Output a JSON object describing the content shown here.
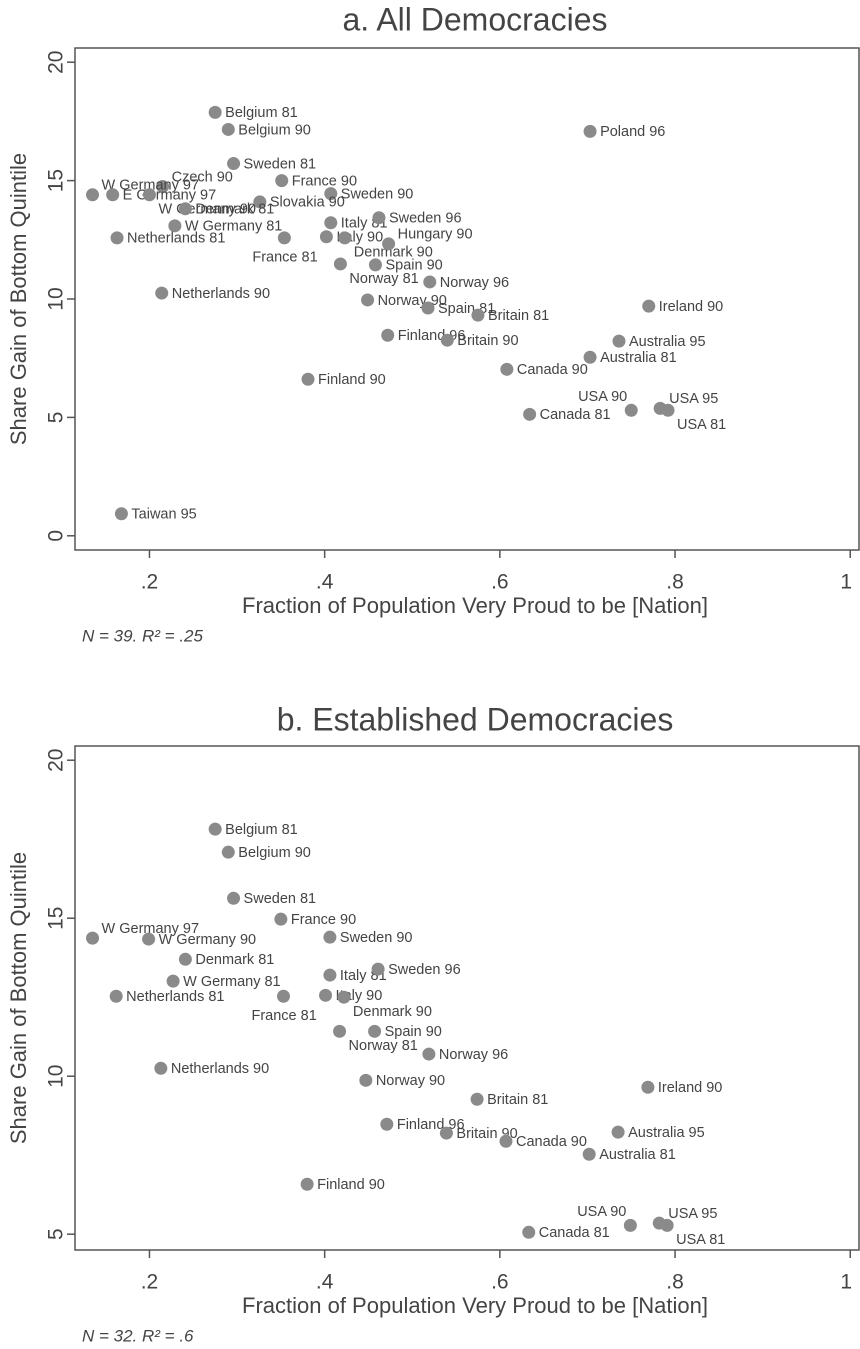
{
  "chart_data": [
    {
      "type": "scatter",
      "title": "a. All Democracies",
      "xlabel": "Fraction of Population Very Proud to be [Nation]",
      "ylabel": "Share Gain of Bottom Quintile",
      "note": "N = 39. R² = .25",
      "color": "#8a8a8a",
      "point_labels": [
        "Belgium 81",
        "Belgium 90",
        "Sweden 81",
        "France 90",
        "Sweden 90",
        "Slovakia 90",
        "Czech 90",
        "W Germany 97",
        "E Germany 97",
        "W Germany 90",
        "Denmark 81",
        "W Germany 81",
        "Netherlands 81",
        "Italy 81",
        "Sweden 96",
        "Italy 90",
        "France 81",
        "Denmark 90",
        "Hungary 90",
        "Spain 90",
        "Norway 81",
        "Norway 96",
        "Netherlands 90",
        "Norway 90",
        "Spain 81",
        "Britain 81",
        "Ireland 90",
        "Finland 96",
        "Britain 90",
        "Australia 95",
        "Australia 81",
        "Canada 90",
        "Finland 90",
        "Canada 81",
        "USA 90",
        "USA 95",
        "USA 81",
        "Poland 96",
        "Taiwan 95"
      ],
      "x": [
        0.275,
        0.29,
        0.296,
        0.351,
        0.407,
        0.326,
        0.215,
        0.135,
        0.158,
        0.2,
        0.241,
        0.229,
        0.163,
        0.407,
        0.462,
        0.402,
        0.354,
        0.423,
        0.473,
        0.458,
        0.418,
        0.52,
        0.214,
        0.449,
        0.518,
        0.575,
        0.77,
        0.472,
        0.54,
        0.736,
        0.703,
        0.608,
        0.381,
        0.634,
        0.75,
        0.783,
        0.792,
        0.703,
        0.168
      ],
      "values": [
        17.88,
        17.16,
        15.72,
        15.0,
        14.45,
        14.1,
        14.75,
        14.4,
        14.4,
        14.4,
        13.81,
        13.09,
        12.58,
        13.22,
        13.43,
        12.63,
        12.58,
        12.58,
        12.33,
        11.44,
        11.48,
        10.72,
        10.25,
        9.96,
        9.62,
        9.32,
        9.7,
        8.47,
        8.26,
        8.22,
        7.54,
        7.03,
        6.61,
        5.13,
        5.3,
        5.38,
        5.3,
        17.08,
        0.93
      ],
      "xlim": [
        0.115,
        1.01
      ],
      "ylim": [
        -0.6,
        20.6
      ],
      "xticks": [
        {
          "value": 0.2,
          "label": ".2"
        },
        {
          "value": 0.4,
          "label": ".4"
        },
        {
          "value": 0.6,
          "label": ".6"
        },
        {
          "value": 0.8,
          "label": ".8"
        },
        1
      ],
      "yticks": [
        0,
        5,
        10,
        15,
        20
      ]
    },
    {
      "type": "scatter",
      "title": "b. Established Democracies",
      "xlabel": "Fraction of Population Very Proud to be [Nation]",
      "ylabel": "Share Gain of Bottom Quintile",
      "note": "N = 32. R² = .6",
      "color": "#8a8a8a",
      "point_labels": [
        "Belgium 81",
        "Belgium 90",
        "Sweden 81",
        "France 90",
        "Sweden 90",
        "W Germany 97",
        "W Germany 90",
        "Denmark 81",
        "W Germany 81",
        "Netherlands 81",
        "Italy 81",
        "Sweden 96",
        "Italy 90",
        "France 81",
        "Denmark 90",
        "Spain 90",
        "Norway 81",
        "Norway 96",
        "Netherlands 90",
        "Norway 90",
        "Britain 81",
        "Ireland 90",
        "Finland 96",
        "Britain 90",
        "Australia 95",
        "Australia 81",
        "Canada 90",
        "Finland 90",
        "Canada 81",
        "USA 90",
        "USA 95",
        "USA 81"
      ],
      "x": [
        0.275,
        0.29,
        0.296,
        0.35,
        0.406,
        0.135,
        0.199,
        0.241,
        0.227,
        0.162,
        0.406,
        0.461,
        0.401,
        0.353,
        0.422,
        0.457,
        0.417,
        0.519,
        0.213,
        0.447,
        0.574,
        0.769,
        0.471,
        0.539,
        0.735,
        0.702,
        0.607,
        0.38,
        0.633,
        0.749,
        0.782,
        0.791
      ],
      "values": [
        17.82,
        17.09,
        15.63,
        14.97,
        14.4,
        14.37,
        14.34,
        13.7,
        13.01,
        12.53,
        13.2,
        13.39,
        12.56,
        12.53,
        12.5,
        11.42,
        11.42,
        10.7,
        10.25,
        9.87,
        9.27,
        9.65,
        8.48,
        8.2,
        8.23,
        7.53,
        7.94,
        6.58,
        5.06,
        5.28,
        5.35,
        5.28
      ],
      "xlim": [
        0.115,
        1.01
      ],
      "ylim": [
        4.5,
        20.45
      ],
      "xticks": [
        {
          "value": 0.2,
          "label": ".2"
        },
        {
          "value": 0.4,
          "label": ".4"
        },
        {
          "value": 0.6,
          "label": ".6"
        },
        {
          "value": 0.8,
          "label": ".8"
        },
        1
      ],
      "yticks": [
        5,
        10,
        15,
        20
      ]
    }
  ]
}
